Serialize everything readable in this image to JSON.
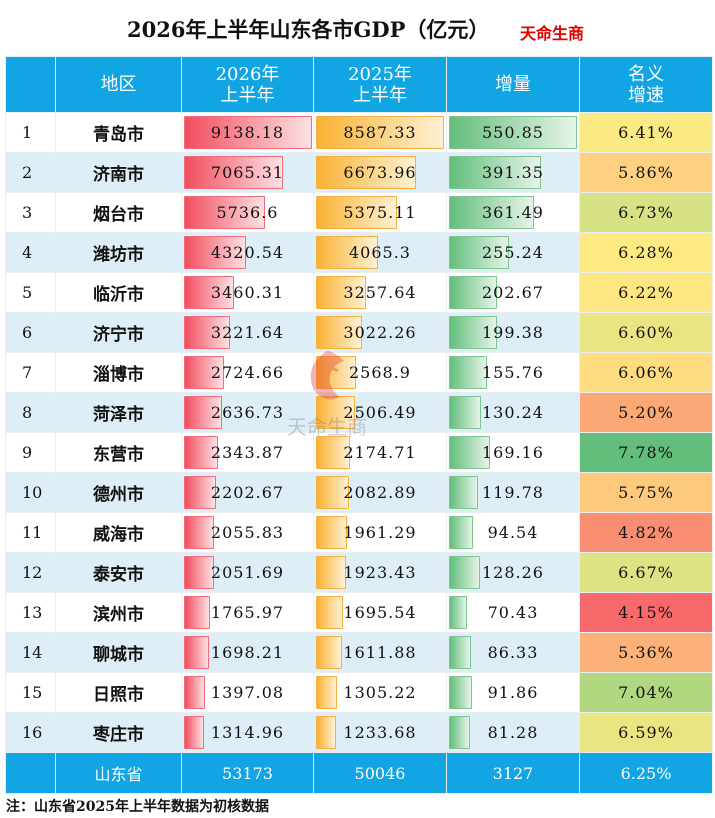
{
  "title": "2026年上半年山东各市GDP（亿元）",
  "brand": "天命生商",
  "headers": {
    "region": "地区",
    "y2026_line1": "2026年",
    "y2026_line2": "上半年",
    "y2025_line1": "2025年",
    "y2025_line2": "上半年",
    "increase": "增量",
    "rate_line1": "名义",
    "rate_line2": "增速"
  },
  "rows": [
    {
      "rank": "1",
      "region": "青岛市",
      "gdp2026": "9138.18",
      "gdp2025": "8587.33",
      "increase": "550.85",
      "rate": "6.41%",
      "rate_color": "#fbe983"
    },
    {
      "rank": "2",
      "region": "济南市",
      "gdp2026": "7065.31",
      "gdp2025": "6673.96",
      "increase": "391.35",
      "rate": "5.86%",
      "rate_color": "#fdd17f"
    },
    {
      "rank": "3",
      "region": "烟台市",
      "gdp2026": "5736.6",
      "gdp2025": "5375.11",
      "increase": "361.49",
      "rate": "6.73%",
      "rate_color": "#d6e283"
    },
    {
      "rank": "4",
      "region": "潍坊市",
      "gdp2026": "4320.54",
      "gdp2025": "4065.3",
      "increase": "255.24",
      "rate": "6.28%",
      "rate_color": "#feea83"
    },
    {
      "rank": "5",
      "region": "临沂市",
      "gdp2026": "3460.31",
      "gdp2025": "3257.64",
      "increase": "202.67",
      "rate": "6.22%",
      "rate_color": "#fee683"
    },
    {
      "rank": "6",
      "region": "济宁市",
      "gdp2026": "3221.64",
      "gdp2025": "3022.26",
      "increase": "199.38",
      "rate": "6.60%",
      "rate_color": "#e9e583"
    },
    {
      "rank": "7",
      "region": "淄博市",
      "gdp2026": "2724.66",
      "gdp2025": "2568.9",
      "increase": "155.76",
      "rate": "6.06%",
      "rate_color": "#fedd81"
    },
    {
      "rank": "8",
      "region": "菏泽市",
      "gdp2026": "2636.73",
      "gdp2025": "2506.49",
      "increase": "130.24",
      "rate": "5.20%",
      "rate_color": "#fba776"
    },
    {
      "rank": "9",
      "region": "东营市",
      "gdp2026": "2343.87",
      "gdp2025": "2174.71",
      "increase": "169.16",
      "rate": "7.78%",
      "rate_color": "#63be7b"
    },
    {
      "rank": "10",
      "region": "德州市",
      "gdp2026": "2202.67",
      "gdp2025": "2082.89",
      "increase": "119.78",
      "rate": "5.75%",
      "rate_color": "#fdca7d"
    },
    {
      "rank": "11",
      "region": "威海市",
      "gdp2026": "2055.83",
      "gdp2025": "1961.29",
      "increase": "94.54",
      "rate": "4.82%",
      "rate_color": "#f98e72"
    },
    {
      "rank": "12",
      "region": "泰安市",
      "gdp2026": "2051.69",
      "gdp2025": "1923.43",
      "increase": "128.26",
      "rate": "6.67%",
      "rate_color": "#dde383"
    },
    {
      "rank": "13",
      "region": "滨州市",
      "gdp2026": "1765.97",
      "gdp2025": "1695.54",
      "increase": "70.43",
      "rate": "4.15%",
      "rate_color": "#f8696b"
    },
    {
      "rank": "14",
      "region": "聊城市",
      "gdp2026": "1698.21",
      "gdp2025": "1611.88",
      "increase": "86.33",
      "rate": "5.36%",
      "rate_color": "#fbb178"
    },
    {
      "rank": "15",
      "region": "日照市",
      "gdp2026": "1397.08",
      "gdp2025": "1305.22",
      "increase": "91.86",
      "rate": "7.04%",
      "rate_color": "#b1d780"
    },
    {
      "rank": "16",
      "region": "枣庄市",
      "gdp2026": "1314.96",
      "gdp2025": "1233.68",
      "increase": "81.28",
      "rate": "6.59%",
      "rate_color": "#eae583"
    }
  ],
  "total": {
    "region": "山东省",
    "gdp2026": "53173",
    "gdp2025": "50046",
    "increase": "3127",
    "rate": "6.25%"
  },
  "note": "注：山东省2025年上半年数据为初核数据",
  "watermark": {
    "seal_text": "天命生商",
    "text": "天命生商"
  }
}
